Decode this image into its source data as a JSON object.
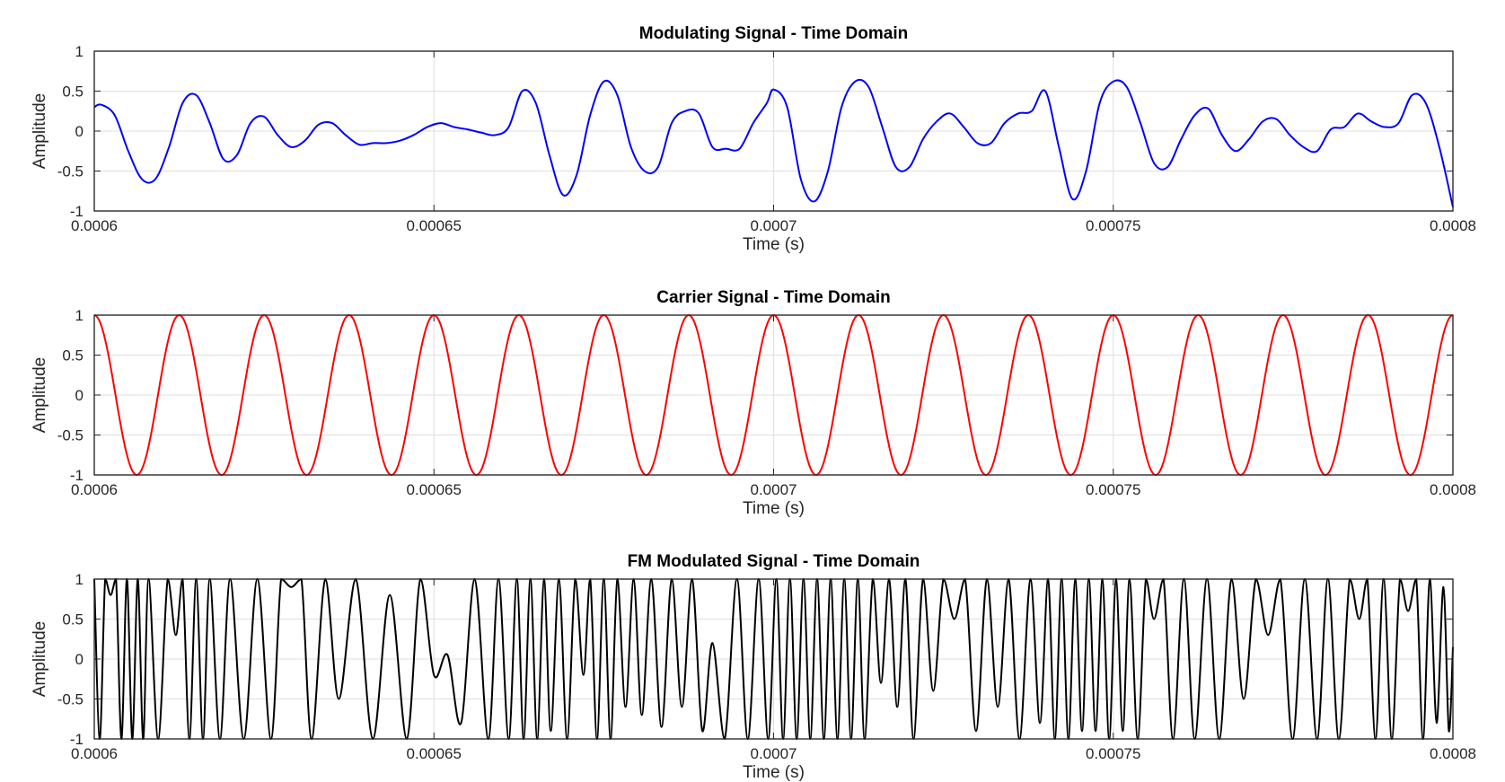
{
  "chart_data": [
    {
      "type": "line",
      "title": "Modulating Signal - Time Domain",
      "xlabel": "Time (s)",
      "ylabel": "Amplitude",
      "xlim": [
        0.0006,
        0.0008
      ],
      "ylim": [
        -1,
        1
      ],
      "xticks": [
        0.0006,
        0.00065,
        0.0007,
        0.00075,
        0.0008
      ],
      "xtick_labels": [
        "0.0006",
        "0.00065",
        "0.0007",
        "0.00075",
        "0.0008"
      ],
      "yticks": [
        1,
        0.5,
        0,
        -0.5,
        -1
      ],
      "ytick_labels": [
        "1",
        "0.5",
        "0",
        "-0.5",
        "-1"
      ],
      "grid": true,
      "series": [
        {
          "color": "#0000ff",
          "x": [
            0.0006,
            0.000601,
            0.000603,
            0.000605,
            0.000607,
            0.000609,
            0.000611,
            0.000613,
            0.000615,
            0.000617,
            0.000619,
            0.000621,
            0.000623,
            0.000625,
            0.000627,
            0.000629,
            0.000631,
            0.000633,
            0.000635,
            0.000637,
            0.000639,
            0.000641,
            0.000643,
            0.000645,
            0.000647,
            0.000649,
            0.000651,
            0.000653,
            0.000655,
            0.000657,
            0.000659,
            0.000661,
            0.000663,
            0.000665,
            0.000667,
            0.000669,
            0.000671,
            0.000673,
            0.000675,
            0.000677,
            0.000679,
            0.000681,
            0.000683,
            0.000685,
            0.000687,
            0.000689,
            0.000691,
            0.000693,
            0.000695,
            0.000697,
            0.000699,
            0.0007,
            0.000702,
            0.000704,
            0.000706,
            0.000708,
            0.00071,
            0.000712,
            0.000714,
            0.000716,
            0.000718,
            0.00072,
            0.000722,
            0.000724,
            0.000726,
            0.000728,
            0.00073,
            0.000732,
            0.000734,
            0.000736,
            0.000738,
            0.00074,
            0.000742,
            0.000744,
            0.000746,
            0.000748,
            0.00075,
            0.000752,
            0.000754,
            0.000756,
            0.000758,
            0.00076,
            0.000762,
            0.000764,
            0.000766,
            0.000768,
            0.00077,
            0.000772,
            0.000774,
            0.000776,
            0.000778,
            0.00078,
            0.000782,
            0.000784,
            0.000786,
            0.000788,
            0.00079,
            0.000792,
            0.000794,
            0.000796,
            0.000798,
            0.0008
          ],
          "y": [
            0.3,
            0.33,
            0.2,
            -0.25,
            -0.6,
            -0.6,
            -0.2,
            0.35,
            0.45,
            0.1,
            -0.35,
            -0.3,
            0.1,
            0.18,
            -0.05,
            -0.2,
            -0.12,
            0.08,
            0.1,
            -0.05,
            -0.17,
            -0.15,
            -0.15,
            -0.12,
            -0.05,
            0.05,
            0.1,
            0.05,
            0.02,
            -0.02,
            -0.05,
            0.05,
            0.5,
            0.35,
            -0.3,
            -0.8,
            -0.55,
            0.2,
            0.62,
            0.45,
            -0.2,
            -0.5,
            -0.45,
            0.1,
            0.25,
            0.22,
            -0.2,
            -0.22,
            -0.22,
            0.1,
            0.35,
            0.52,
            0.3,
            -0.6,
            -0.88,
            -0.5,
            0.3,
            0.62,
            0.55,
            0.05,
            -0.45,
            -0.45,
            -0.1,
            0.12,
            0.22,
            0.05,
            -0.15,
            -0.15,
            0.1,
            0.22,
            0.25,
            0.5,
            -0.2,
            -0.85,
            -0.5,
            0.35,
            0.62,
            0.55,
            0.1,
            -0.4,
            -0.45,
            -0.1,
            0.2,
            0.28,
            -0.05,
            -0.25,
            -0.1,
            0.12,
            0.15,
            -0.05,
            -0.2,
            -0.25,
            0.02,
            0.05,
            0.22,
            0.12,
            0.05,
            0.1,
            0.45,
            0.35,
            -0.2,
            -0.95
          ]
        }
      ]
    },
    {
      "type": "line",
      "title": "Carrier Signal - Time Domain",
      "xlabel": "Time (s)",
      "ylabel": "Amplitude",
      "xlim": [
        0.0006,
        0.0008
      ],
      "ylim": [
        -1,
        1
      ],
      "xticks": [
        0.0006,
        0.00065,
        0.0007,
        0.00075,
        0.0008
      ],
      "xtick_labels": [
        "0.0006",
        "0.00065",
        "0.0007",
        "0.00075",
        "0.0008"
      ],
      "yticks": [
        1,
        0.5,
        0,
        -0.5,
        -1
      ],
      "ytick_labels": [
        "1",
        "0.5",
        "0",
        "-0.5",
        "-1"
      ],
      "grid": true,
      "series": [
        {
          "color": "#ff0000",
          "x": [
            0.0006,
            0.00060625,
            0.0006125,
            0.00061875,
            0.000625,
            0.00063125,
            0.0006375,
            0.00064375,
            0.00065,
            0.00065625,
            0.0006625,
            0.00066875,
            0.000675,
            0.00068125,
            0.0006875,
            0.00069375,
            0.0007,
            0.00070625,
            0.0007125,
            0.00071875,
            0.000725,
            0.00073125,
            0.0007375,
            0.00074375,
            0.00075,
            0.00075625,
            0.0007625,
            0.00076875,
            0.000775,
            0.00078125,
            0.0007875,
            0.00079375,
            0.0008
          ],
          "y": [
            1,
            -1,
            1,
            -1,
            1,
            -1,
            1,
            -1,
            1,
            -1,
            1,
            -1,
            1,
            -1,
            1,
            -1,
            1,
            -1,
            1,
            -1,
            1,
            -1,
            1,
            -1,
            1,
            -1,
            1,
            -1,
            1,
            -1,
            1,
            -1,
            1
          ]
        }
      ]
    },
    {
      "type": "line",
      "title": "FM Modulated Signal - Time Domain",
      "xlabel": "Time (s)",
      "ylabel": "Amplitude",
      "xlim": [
        0.0006,
        0.0008
      ],
      "ylim": [
        -1,
        1
      ],
      "xticks": [
        0.0006,
        0.00065,
        0.0007,
        0.00075,
        0.0008
      ],
      "xtick_labels": [
        "0.0006",
        "0.00065",
        "0.0007",
        "0.00075",
        "0.0008"
      ],
      "yticks": [
        1,
        0.5,
        0,
        -0.5,
        -1
      ],
      "ytick_labels": [
        "1",
        "0.5",
        "0",
        "-0.5",
        "-1"
      ],
      "grid": true,
      "series": [
        {
          "color": "#000000",
          "x": [
            0.0006,
            0.0006008,
            0.0006016,
            0.0006024,
            0.0006032,
            0.000604,
            0.0006048,
            0.0006056,
            0.0006064,
            0.0006072,
            0.000608,
            0.0006094,
            0.0006108,
            0.000612,
            0.000613,
            0.000614,
            0.000615,
            0.000616,
            0.000617,
            0.0006185,
            0.00062,
            0.000622,
            0.000624,
            0.000626,
            0.0006275,
            0.000629,
            0.0006305,
            0.000632,
            0.000634,
            0.000636,
            0.0006385,
            0.000641,
            0.0006435,
            0.000646,
            0.000648,
            0.00065,
            0.000652,
            0.000654,
            0.000656,
            0.000658,
            0.0006595,
            0.000661,
            0.0006622,
            0.0006632,
            0.0006642,
            0.0006652,
            0.0006662,
            0.0006672,
            0.0006684,
            0.0006696,
            0.0006708,
            0.000672,
            0.000673,
            0.000674,
            0.000675,
            0.000676,
            0.000677,
            0.0006782,
            0.0006794,
            0.0006806,
            0.000682,
            0.0006835,
            0.000685,
            0.0006865,
            0.000688,
            0.0006895,
            0.000691,
            0.0006928,
            0.0006946,
            0.0006962,
            0.0006978,
            0.0006992,
            0.0007004,
            0.0007014,
            0.0007024,
            0.0007034,
            0.0007044,
            0.0007054,
            0.0007064,
            0.0007074,
            0.0007084,
            0.0007094,
            0.0007104,
            0.0007114,
            0.0007124,
            0.0007134,
            0.0007146,
            0.0007158,
            0.000717,
            0.0007182,
            0.0007194,
            0.0007206,
            0.000722,
            0.0007235,
            0.000725,
            0.0007266,
            0.0007282,
            0.0007298,
            0.0007314,
            0.000733,
            0.0007346,
            0.0007362,
            0.0007378,
            0.0007392,
            0.0007404,
            0.0007414,
            0.0007424,
            0.0007434,
            0.0007444,
            0.0007454,
            0.0007464,
            0.0007474,
            0.0007484,
            0.0007494,
            0.0007504,
            0.0007514,
            0.0007524,
            0.0007536,
            0.0007548,
            0.000756,
            0.0007574,
            0.0007588,
            0.0007604,
            0.000762,
            0.0007638,
            0.0007656,
            0.0007674,
            0.0007692,
            0.000771,
            0.0007728,
            0.0007746,
            0.0007764,
            0.0007782,
            0.00078,
            0.0007816,
            0.0007832,
            0.0007848,
            0.0007862,
            0.0007874,
            0.0007886,
            0.0007898,
            0.000791,
            0.0007922,
            0.0007934,
            0.0007946,
            0.0007956,
            0.0007966,
            0.0007976,
            0.0007986,
            0.0007994,
            0.0008
          ],
          "y": [
            1,
            -1,
            1,
            0.8,
            1,
            -1,
            1,
            -1,
            1,
            -1,
            1,
            -1,
            1,
            0.3,
            1,
            -1,
            1,
            -1,
            1,
            -1,
            1,
            -1,
            1,
            -1,
            1,
            0.9,
            1,
            -1,
            1,
            -0.5,
            1,
            -1,
            0.8,
            -1,
            1,
            -0.2,
            0.05,
            -0.8,
            1,
            -1,
            1,
            -1,
            1,
            -1,
            1,
            -1,
            1,
            -0.9,
            1,
            -1,
            1,
            -0.2,
            1,
            -1,
            1,
            -1,
            1,
            -0.6,
            1,
            -0.7,
            1,
            -0.85,
            1,
            -0.6,
            1,
            -0.9,
            0.2,
            -1,
            1,
            -1,
            1,
            -1,
            1,
            -1,
            1,
            -1,
            1,
            -1,
            1,
            -1,
            1,
            -1,
            1,
            -1,
            1,
            -1,
            1,
            -0.3,
            1,
            -0.6,
            1,
            -1,
            1,
            -0.4,
            1,
            0.5,
            1,
            -0.9,
            1,
            -0.6,
            1,
            -1,
            1,
            -0.8,
            1,
            -1,
            1,
            -1,
            1,
            -0.9,
            1,
            -0.9,
            1,
            -1,
            1,
            -0.9,
            1,
            -1,
            1,
            0.5,
            1,
            -1,
            1,
            -1,
            1,
            -1,
            1,
            -0.5,
            1,
            0.3,
            1,
            -1,
            1,
            -1,
            1,
            -1,
            1,
            0.5,
            1,
            -1,
            1,
            -1,
            1,
            0.6,
            1,
            -1,
            1,
            -0.8,
            0.9,
            -0.9,
            0.15
          ]
        }
      ]
    }
  ]
}
